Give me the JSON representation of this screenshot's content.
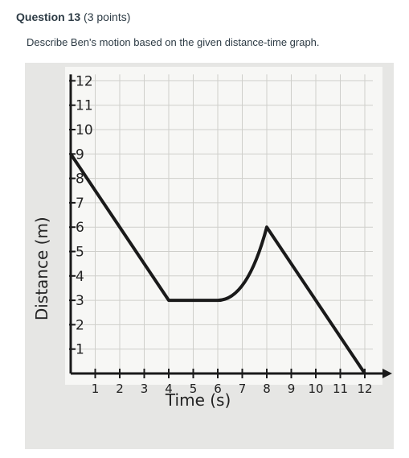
{
  "question": {
    "title": "Question 13",
    "points": "(3 points)",
    "prompt": "Describe Ben's motion based on the given distance-time graph."
  },
  "chart_data": {
    "type": "line",
    "xlabel": "Time (s)",
    "ylabel": "Distance (m)",
    "x_ticks": [
      "1",
      "2",
      "3",
      "4",
      "5",
      "6",
      "7",
      "8",
      "9",
      "10",
      "11",
      "12"
    ],
    "y_ticks": [
      "1",
      "2",
      "3",
      "4",
      "5",
      "6",
      "7",
      "8",
      "9",
      "10",
      "11",
      "12"
    ],
    "xlim": [
      0,
      12
    ],
    "ylim": [
      0,
      12
    ],
    "grid": true,
    "series": [
      {
        "points": [
          [
            0,
            9
          ],
          [
            4,
            3
          ],
          [
            6,
            3
          ],
          [
            7,
            4
          ],
          [
            8,
            6
          ],
          [
            12,
            0
          ]
        ]
      }
    ]
  }
}
